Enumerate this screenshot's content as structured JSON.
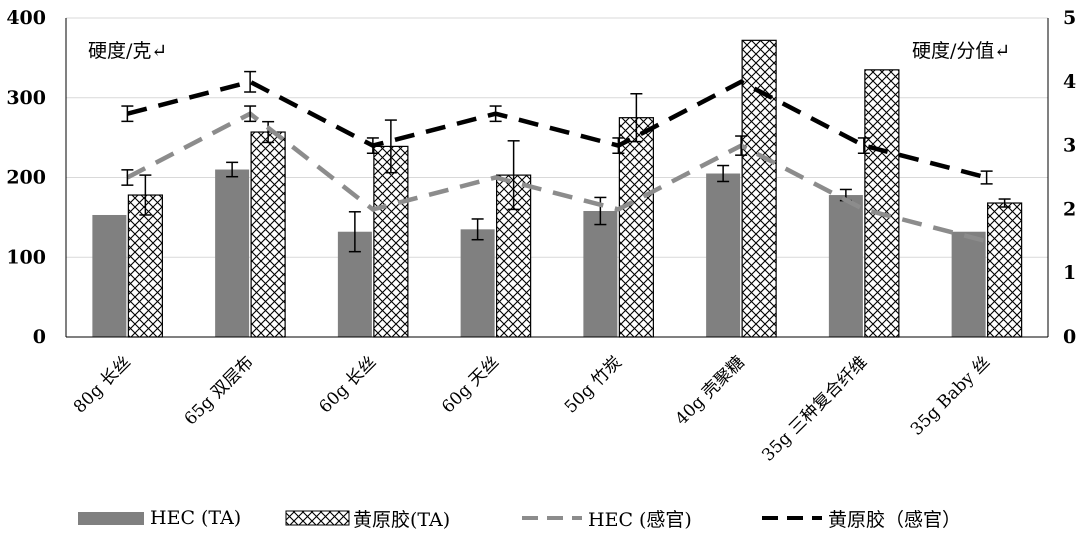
{
  "chart_data": {
    "type": "bar+line",
    "categories": [
      "80g 长丝",
      "65g 双层布",
      "60g 长丝",
      "60g 天丝",
      "50g 竹炭",
      "40g 壳聚糖",
      "35g 三种复合纤维",
      "35g Baby 丝"
    ],
    "y_left": {
      "label": "硬度/克↵",
      "range": [
        0,
        400
      ],
      "ticks": [
        "0",
        "100",
        "200",
        "300",
        "400"
      ]
    },
    "y_right": {
      "label": "硬度/分值↵",
      "range": [
        0,
        5
      ],
      "ticks": [
        "0",
        "1",
        "2",
        "3",
        "4",
        "5"
      ]
    },
    "grid": true,
    "legend_position": "bottom",
    "series": [
      {
        "name": "HEC (TA)",
        "kind": "bar",
        "axis": "left",
        "color": "#808080",
        "values": [
          153,
          210,
          132,
          135,
          158,
          205,
          178,
          132
        ],
        "errors": [
          0,
          9,
          25,
          13,
          17,
          10,
          7,
          0
        ]
      },
      {
        "name": "黄原胶(TA)",
        "kind": "bar",
        "axis": "left",
        "pattern": "crosshatch",
        "values": [
          178,
          257,
          239,
          203,
          275,
          372,
          335,
          168
        ],
        "errors": [
          25,
          13,
          33,
          43,
          30,
          0,
          0,
          5
        ]
      },
      {
        "name": "HEC (感官)",
        "kind": "line",
        "axis": "right",
        "style": "dashed",
        "color": "#8c8c8c",
        "values": [
          2.5,
          3.5,
          2.0,
          2.5,
          2.0,
          3.0,
          2.0,
          1.5
        ],
        "errors": [
          0.12,
          0.12,
          0,
          0,
          0,
          0.15,
          0,
          0
        ]
      },
      {
        "name": "黄原胶（感官）",
        "kind": "line",
        "axis": "right",
        "style": "dashed",
        "color": "#000000",
        "values": [
          3.5,
          4.0,
          3.0,
          3.5,
          3.0,
          4.0,
          3.0,
          2.5
        ],
        "errors": [
          0.12,
          0.16,
          0.12,
          0.12,
          0.12,
          0,
          0.12,
          0.1
        ]
      }
    ]
  }
}
